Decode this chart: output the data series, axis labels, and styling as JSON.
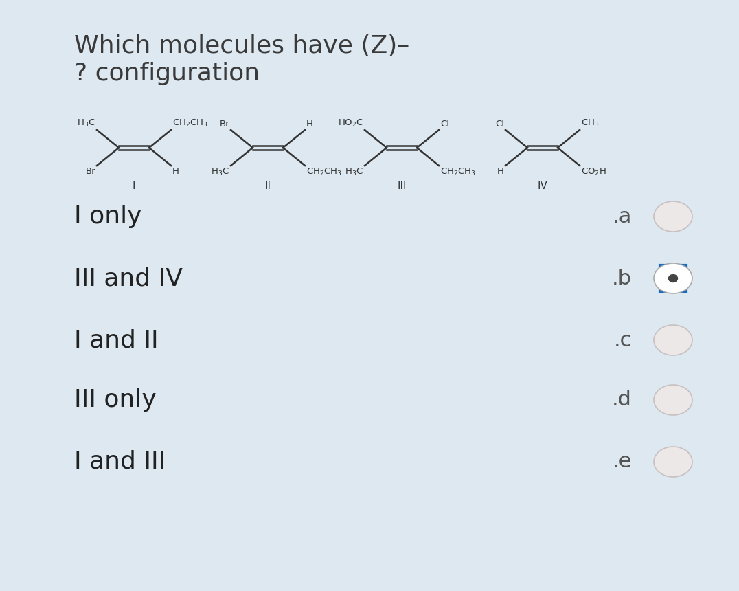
{
  "bg_color": "#dde8f0",
  "title_line1": "Which molecules have (Z)–",
  "title_line2": "? configuration",
  "title_fontsize": 26,
  "title_color": "#3a3a3a",
  "options": [
    {
      "label": "I only",
      "key": ".a",
      "selected": false
    },
    {
      "label": "III and IV",
      "key": ".b",
      "selected": true
    },
    {
      "label": "I and II",
      "key": ".c",
      "selected": false
    },
    {
      "label": "III only",
      "key": ".d",
      "selected": false
    },
    {
      "label": "I and III",
      "key": ".e",
      "selected": false
    }
  ],
  "option_fontsize": 26,
  "option_color": "#222222",
  "key_fontsize": 22,
  "key_color": "#555555",
  "radio_fill_unselected": "#e8e0e0",
  "radio_edge_unselected": "#c0b8b8",
  "radio_color_selected_border": "#1a6bbf",
  "radio_color_selected_inner": "#444444",
  "molecule_label_color": "#333333",
  "double_bond_color": "#333333",
  "mol_fs": 9.5
}
